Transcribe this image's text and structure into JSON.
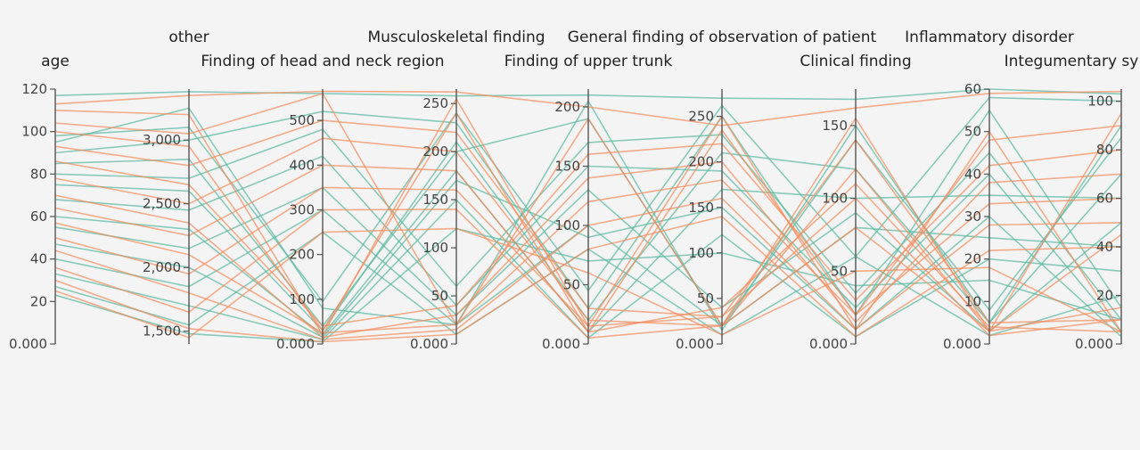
{
  "colors": {
    "series_a": "#5ab8a0",
    "series_b": "#f28c5c",
    "axis": "#555555",
    "background": "#f4f4f4"
  },
  "chart_data": {
    "type": "parallel-coordinates",
    "grid": false,
    "legend": "none",
    "axes": [
      {
        "key": "age",
        "label": "age",
        "range": [
          0,
          120
        ],
        "ticks": [
          0,
          20,
          40,
          60,
          80,
          100,
          120
        ],
        "tick_labels": [
          "0.000",
          "20",
          "40",
          "60",
          "80",
          "100",
          "120"
        ]
      },
      {
        "key": "other",
        "label": "other",
        "range": [
          1400,
          3400
        ],
        "ticks": [
          1500,
          2000,
          2500,
          3000
        ],
        "tick_labels": [
          "1,500",
          "2,000",
          "2,500",
          "3,000"
        ]
      },
      {
        "key": "head_neck",
        "label": "Finding of head and neck region",
        "range": [
          0,
          570
        ],
        "ticks": [
          0,
          100,
          200,
          300,
          400,
          500
        ],
        "tick_labels": [
          "0.000",
          "100",
          "200",
          "300",
          "400",
          "500"
        ]
      },
      {
        "key": "musculoskeletal",
        "label": "Musculoskeletal finding",
        "range": [
          0,
          265
        ],
        "ticks": [
          0,
          50,
          100,
          150,
          200,
          250
        ],
        "tick_labels": [
          "0.000",
          "50",
          "100",
          "150",
          "200",
          "250"
        ]
      },
      {
        "key": "upper_trunk",
        "label": "Finding of upper trunk",
        "range": [
          0,
          215
        ],
        "ticks": [
          0,
          50,
          100,
          150,
          200
        ],
        "tick_labels": [
          "0.000",
          "50",
          "100",
          "150",
          "200"
        ]
      },
      {
        "key": "general_observation",
        "label": "General finding of observation of patient",
        "range": [
          0,
          280
        ],
        "ticks": [
          0,
          50,
          100,
          150,
          200,
          250
        ],
        "tick_labels": [
          "0.000",
          "50",
          "100",
          "150",
          "200",
          "250"
        ]
      },
      {
        "key": "clinical",
        "label": "Clinical finding",
        "range": [
          0,
          175
        ],
        "ticks": [
          0,
          50,
          100,
          150
        ],
        "tick_labels": [
          "0.000",
          "50",
          "100",
          "150"
        ]
      },
      {
        "key": "inflammatory",
        "label": "Inflammatory disorder",
        "range": [
          0,
          60
        ],
        "ticks": [
          0,
          10,
          20,
          30,
          40,
          50,
          60
        ],
        "tick_labels": [
          "0.000",
          "10",
          "20",
          "30",
          "40",
          "50",
          "60"
        ]
      },
      {
        "key": "integumentary",
        "label": "Integumentary sy",
        "range": [
          0,
          105
        ],
        "ticks": [
          0,
          20,
          40,
          60,
          80,
          100
        ],
        "tick_labels": [
          "0.000",
          "20",
          "40",
          "60",
          "80",
          "100"
        ]
      }
    ],
    "records": [
      {
        "series": "a",
        "values": [
          117,
          3380,
          560,
          258,
          210,
          270,
          168,
          60,
          103
        ]
      },
      {
        "series": "a",
        "values": [
          98,
          3100,
          95,
          240,
          45,
          262,
          60,
          58,
          100
        ]
      },
      {
        "series": "a",
        "values": [
          95,
          3250,
          80,
          20,
          205,
          15,
          150,
          5,
          90
        ]
      },
      {
        "series": "a",
        "values": [
          90,
          3000,
          520,
          230,
          30,
          250,
          20,
          55,
          15
        ]
      },
      {
        "series": "a",
        "values": [
          85,
          2850,
          40,
          200,
          190,
          20,
          140,
          8,
          85
        ]
      },
      {
        "series": "a",
        "values": [
          80,
          2700,
          480,
          60,
          170,
          230,
          35,
          45,
          10
        ]
      },
      {
        "series": "a",
        "values": [
          75,
          2600,
          30,
          210,
          20,
          210,
          120,
          5,
          70
        ]
      },
      {
        "series": "a",
        "values": [
          68,
          2450,
          420,
          40,
          150,
          190,
          25,
          40,
          5
        ]
      },
      {
        "series": "a",
        "values": [
          60,
          2300,
          20,
          180,
          10,
          170,
          100,
          35,
          60
        ]
      },
      {
        "series": "a",
        "values": [
          55,
          2150,
          350,
          30,
          130,
          40,
          90,
          3,
          50
        ]
      },
      {
        "series": "a",
        "values": [
          47,
          2000,
          15,
          170,
          90,
          150,
          10,
          30,
          3
        ]
      },
      {
        "series": "a",
        "values": [
          40,
          1850,
          300,
          20,
          100,
          20,
          80,
          25,
          40
        ]
      },
      {
        "series": "a",
        "values": [
          33,
          1700,
          10,
          150,
          5,
          120,
          5,
          20,
          30
        ]
      },
      {
        "series": "a",
        "values": [
          27,
          1550,
          250,
          10,
          80,
          10,
          60,
          2,
          20
        ]
      },
      {
        "series": "a",
        "values": [
          23,
          1480,
          5,
          120,
          70,
          100,
          40,
          15,
          10
        ]
      },
      {
        "series": "b",
        "values": [
          113,
          3350,
          565,
          262,
          200,
          240,
          162,
          59,
          104
        ]
      },
      {
        "series": "b",
        "values": [
          110,
          3200,
          20,
          255,
          15,
          250,
          10,
          50,
          5
        ]
      },
      {
        "series": "b",
        "values": [
          104,
          3050,
          560,
          20,
          190,
          20,
          155,
          3,
          95
        ]
      },
      {
        "series": "b",
        "values": [
          100,
          2950,
          30,
          240,
          10,
          235,
          20,
          48,
          90
        ]
      },
      {
        "series": "b",
        "values": [
          93,
          2800,
          500,
          220,
          30,
          30,
          140,
          5,
          10
        ]
      },
      {
        "series": "b",
        "values": [
          86,
          2650,
          40,
          40,
          160,
          220,
          30,
          42,
          80
        ]
      },
      {
        "series": "b",
        "values": [
          78,
          2500,
          460,
          200,
          20,
          20,
          120,
          3,
          15
        ]
      },
      {
        "series": "b",
        "values": [
          70,
          2350,
          15,
          30,
          140,
          200,
          15,
          38,
          70
        ]
      },
      {
        "series": "b",
        "values": [
          64,
          2250,
          400,
          180,
          10,
          40,
          110,
          4,
          5
        ]
      },
      {
        "series": "b",
        "values": [
          57,
          2100,
          25,
          20,
          120,
          180,
          20,
          33,
          60
        ]
      },
      {
        "series": "b",
        "values": [
          50,
          1950,
          350,
          160,
          15,
          30,
          100,
          2,
          10
        ]
      },
      {
        "series": "b",
        "values": [
          44,
          1800,
          10,
          15,
          100,
          160,
          10,
          28,
          50
        ]
      },
      {
        "series": "b",
        "values": [
          36,
          1650,
          300,
          140,
          5,
          20,
          80,
          3,
          45
        ]
      },
      {
        "series": "b",
        "values": [
          30,
          1520,
          5,
          10,
          80,
          140,
          5,
          22,
          40
        ]
      },
      {
        "series": "b",
        "values": [
          25,
          1450,
          250,
          120,
          60,
          10,
          50,
          18,
          5
        ]
      }
    ]
  }
}
